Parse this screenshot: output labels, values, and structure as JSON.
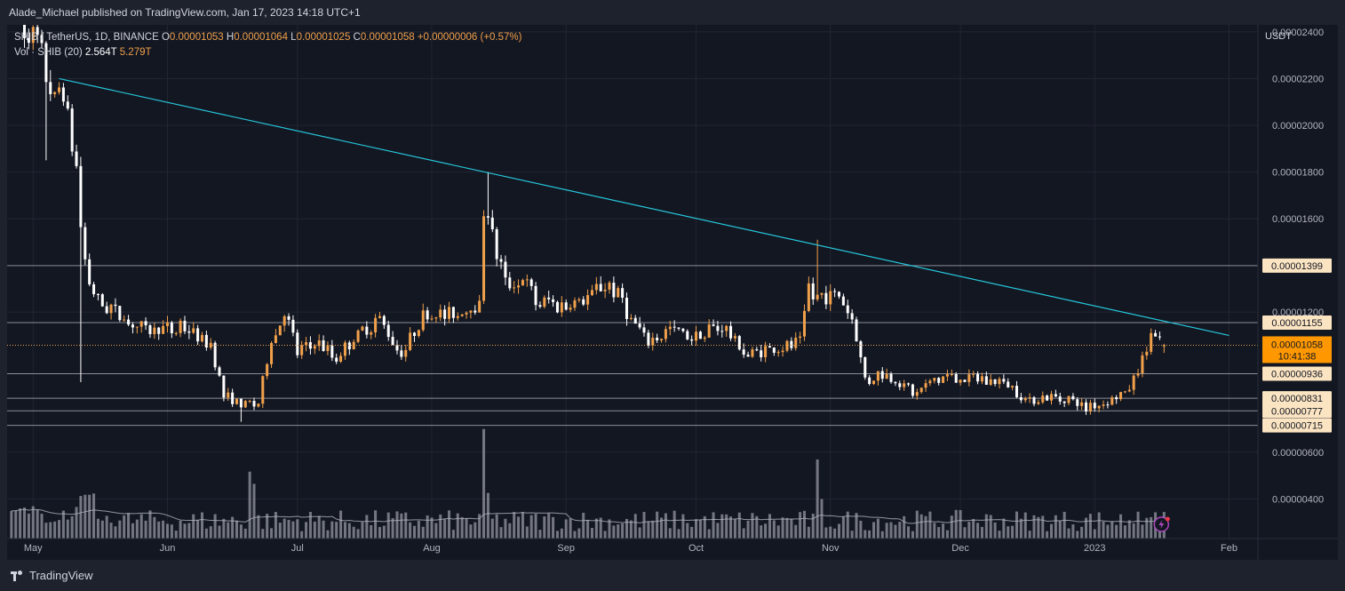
{
  "header": {
    "publisher": "Alade_Michael published on TradingView.com, Jan 17, 2023 14:18 UTC+1"
  },
  "legend": {
    "symbol": "SHIB / TetherUS, 1D, BINANCE",
    "o_label": "O",
    "o_value": "0.00001053",
    "h_label": "H",
    "h_value": "0.00001064",
    "l_label": "L",
    "l_value": "0.00001025",
    "c_label": "C",
    "c_value": "0.00001058",
    "change": "+0.00000006 (+0.57%)",
    "vol_label": "Vol · SHIB (20)",
    "vol_value": "2.564T",
    "vol_ma": "5.279T"
  },
  "footer": {
    "brand": "TradingView"
  },
  "chart_data": {
    "type": "candlestick",
    "symbol": "SHIB / TetherUS",
    "interval": "1D",
    "exchange": "BINANCE",
    "ylabel": "USDT",
    "ylim": [
      2.3e-06,
      2.43e-05
    ],
    "yticks": [
      "0.00002400",
      "0.00002200",
      "0.00002000",
      "0.00001800",
      "0.00001600",
      "0.00001200",
      "0.00000600",
      "0.00000400"
    ],
    "x_tick_labels": [
      "May",
      "Jun",
      "Jul",
      "Aug",
      "Sep",
      "Oct",
      "Nov",
      "Dec",
      "2023",
      "Feb"
    ],
    "horizontal_levels": [
      {
        "label": "0.00001399",
        "value": 1.399e-05
      },
      {
        "label": "0.00001155",
        "value": 1.155e-05
      },
      {
        "label": "0.00000936",
        "value": 9.36e-06
      },
      {
        "label": "0.00000831",
        "value": 8.31e-06
      },
      {
        "label": "0.00000777",
        "value": 7.77e-06
      },
      {
        "label": "0.00000715",
        "value": 7.15e-06
      }
    ],
    "current_price": {
      "label": "0.00001058",
      "value": 1.058e-05,
      "countdown": "10:41:38"
    },
    "trendline": {
      "from": {
        "date": "2022-05-07",
        "value": 2.2e-05
      },
      "to": {
        "date": "2023-02-01",
        "value": 1.1e-05
      }
    },
    "colors": {
      "up": "#f0a04b",
      "down": "#ffffff",
      "trendline": "#26c6da",
      "levels": "#b2b5be",
      "volume": "#9598a1",
      "volume_ma": "#b2b5be"
    },
    "price_anchors": [
      [
        "2022-04-26",
        2.5e-05
      ],
      [
        "2022-04-30",
        2.4e-05
      ],
      [
        "2022-05-03",
        2.3e-05
      ],
      [
        "2022-05-06",
        2.1e-05
      ],
      [
        "2022-05-08",
        2.15e-05
      ],
      [
        "2022-05-11",
        1.8e-05
      ],
      [
        "2022-05-13",
        1.4e-05
      ],
      [
        "2022-05-16",
        1.25e-05
      ],
      [
        "2022-05-20",
        1.2e-05
      ],
      [
        "2022-05-28",
        1.12e-05
      ],
      [
        "2022-06-05",
        1.14e-05
      ],
      [
        "2022-06-11",
        1.05e-05
      ],
      [
        "2022-06-14",
        8.5e-06
      ],
      [
        "2022-06-18",
        8e-06
      ],
      [
        "2022-06-22",
        8.2e-06
      ],
      [
        "2022-06-25",
        1.08e-05
      ],
      [
        "2022-06-28",
        1.2e-05
      ],
      [
        "2022-07-01",
        1.03e-05
      ],
      [
        "2022-07-05",
        1.07e-05
      ],
      [
        "2022-07-10",
        1.01e-05
      ],
      [
        "2022-07-15",
        1.1e-05
      ],
      [
        "2022-07-20",
        1.16e-05
      ],
      [
        "2022-07-25",
        1.03e-05
      ],
      [
        "2022-07-30",
        1.18e-05
      ],
      [
        "2022-08-06",
        1.2e-05
      ],
      [
        "2022-08-12",
        1.23e-05
      ],
      [
        "2022-08-13",
        1.65e-05
      ],
      [
        "2022-08-14",
        1.62e-05
      ],
      [
        "2022-08-16",
        1.45e-05
      ],
      [
        "2022-08-18",
        1.32e-05
      ],
      [
        "2022-08-22",
        1.35e-05
      ],
      [
        "2022-08-25",
        1.25e-05
      ],
      [
        "2022-08-30",
        1.22e-05
      ],
      [
        "2022-09-06",
        1.25e-05
      ],
      [
        "2022-09-09",
        1.32e-05
      ],
      [
        "2022-09-13",
        1.28e-05
      ],
      [
        "2022-09-16",
        1.15e-05
      ],
      [
        "2022-09-20",
        1.07e-05
      ],
      [
        "2022-09-25",
        1.12e-05
      ],
      [
        "2022-09-30",
        1.1e-05
      ],
      [
        "2022-10-07",
        1.14e-05
      ],
      [
        "2022-10-13",
        1.02e-05
      ],
      [
        "2022-10-20",
        1.04e-05
      ],
      [
        "2022-10-25",
        1.08e-05
      ],
      [
        "2022-10-27",
        1.3e-05
      ],
      [
        "2022-10-29",
        1.25e-05
      ],
      [
        "2022-11-03",
        1.28e-05
      ],
      [
        "2022-11-06",
        1.18e-05
      ],
      [
        "2022-11-09",
        9e-06
      ],
      [
        "2022-11-12",
        9.3e-06
      ],
      [
        "2022-11-17",
        9e-06
      ],
      [
        "2022-11-21",
        8.4e-06
      ],
      [
        "2022-11-25",
        9.1e-06
      ],
      [
        "2022-12-01",
        9.2e-06
      ],
      [
        "2022-12-06",
        9.1e-06
      ],
      [
        "2022-12-12",
        8.9e-06
      ],
      [
        "2022-12-16",
        8.2e-06
      ],
      [
        "2022-12-20",
        8.3e-06
      ],
      [
        "2022-12-25",
        8.3e-06
      ],
      [
        "2022-12-30",
        7.9e-06
      ],
      [
        "2023-01-04",
        8.2e-06
      ],
      [
        "2023-01-08",
        8.5e-06
      ],
      [
        "2023-01-11",
        9.5e-06
      ],
      [
        "2023-01-14",
        1.1e-05
      ],
      [
        "2023-01-15",
        1.08e-05
      ],
      [
        "2023-01-17",
        1.058e-05
      ]
    ],
    "volume_ylim": [
      0,
      2.6
    ],
    "volume_ma_level": 0.75,
    "volume_spikes": [
      [
        "2022-05-12",
        0.7
      ],
      [
        "2022-05-13",
        0.72
      ],
      [
        "2022-05-14",
        0.72
      ],
      [
        "2022-05-15",
        0.74
      ],
      [
        "2022-06-20",
        1.1
      ],
      [
        "2022-06-21",
        0.9
      ],
      [
        "2022-08-13",
        1.8
      ],
      [
        "2022-08-14",
        0.75
      ],
      [
        "2022-10-29",
        1.3
      ],
      [
        "2022-10-30",
        0.65
      ]
    ]
  }
}
